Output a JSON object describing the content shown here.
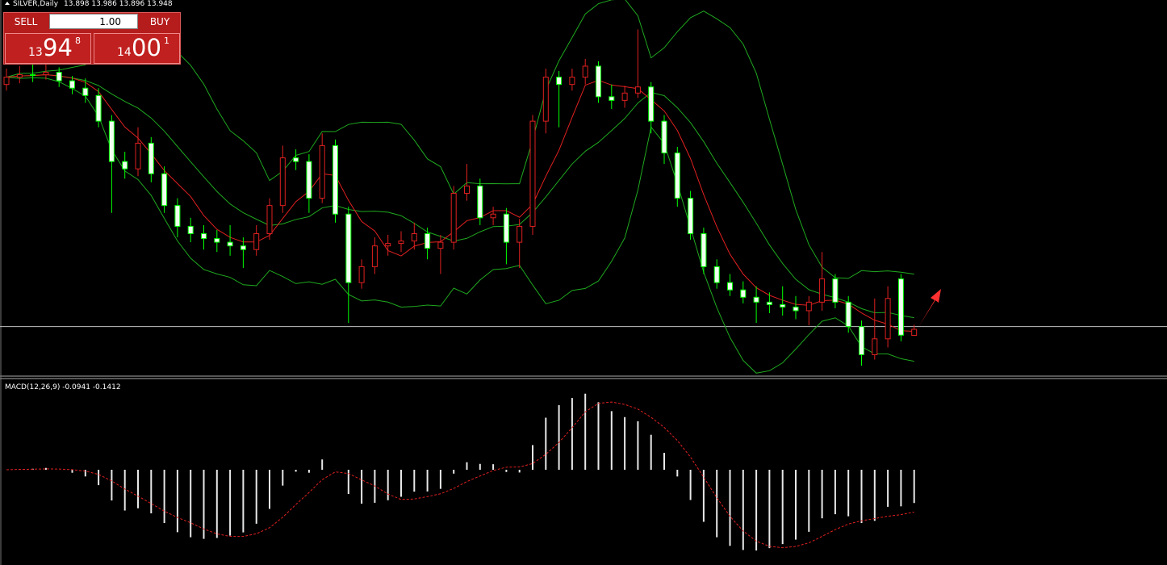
{
  "chart_data": {
    "type": "candlestick",
    "title": "SILVER,Daily",
    "ylim": [
      13.565,
      16.641
    ],
    "price_line": 13.97,
    "indicator_label": "MACD(12,26,9) -0.0941 -0.1412",
    "candles": [
      [
        15.95,
        16.08,
        15.9,
        16.01
      ],
      [
        16.01,
        16.1,
        15.96,
        16.03
      ],
      [
        16.03,
        16.12,
        15.97,
        16.03
      ],
      [
        16.03,
        16.2,
        15.99,
        16.05
      ],
      [
        16.05,
        16.09,
        15.93,
        15.98
      ],
      [
        15.98,
        16.02,
        15.87,
        15.92
      ],
      [
        15.92,
        16.0,
        15.8,
        15.86
      ],
      [
        15.86,
        15.92,
        15.6,
        15.65
      ],
      [
        15.65,
        15.7,
        14.9,
        15.32
      ],
      [
        15.32,
        15.4,
        15.18,
        15.26
      ],
      [
        15.26,
        15.6,
        15.2,
        15.47
      ],
      [
        15.47,
        15.52,
        15.15,
        15.22
      ],
      [
        15.22,
        15.28,
        14.9,
        14.96
      ],
      [
        14.96,
        15.02,
        14.7,
        14.79
      ],
      [
        14.79,
        14.86,
        14.66,
        14.73
      ],
      [
        14.73,
        14.8,
        14.6,
        14.69
      ],
      [
        14.69,
        14.76,
        14.58,
        14.66
      ],
      [
        14.66,
        14.8,
        14.55,
        14.63
      ],
      [
        14.63,
        14.7,
        14.45,
        14.6
      ],
      [
        14.6,
        14.8,
        14.55,
        14.73
      ],
      [
        14.73,
        15.02,
        14.68,
        14.96
      ],
      [
        14.96,
        15.45,
        14.9,
        15.35
      ],
      [
        15.35,
        15.42,
        15.25,
        15.32
      ],
      [
        15.32,
        15.38,
        14.9,
        15.02
      ],
      [
        15.02,
        15.55,
        14.98,
        15.45
      ],
      [
        15.45,
        15.5,
        14.82,
        14.89
      ],
      [
        14.89,
        14.95,
        14.0,
        14.33
      ],
      [
        14.33,
        14.52,
        14.28,
        14.46
      ],
      [
        14.46,
        14.7,
        14.4,
        14.63
      ],
      [
        14.63,
        14.72,
        14.55,
        14.65
      ],
      [
        14.65,
        14.75,
        14.58,
        14.67
      ],
      [
        14.67,
        14.82,
        14.6,
        14.73
      ],
      [
        14.73,
        14.78,
        14.52,
        14.61
      ],
      [
        14.61,
        14.72,
        14.4,
        14.66
      ],
      [
        14.66,
        15.12,
        14.6,
        15.06
      ],
      [
        15.06,
        15.3,
        15.0,
        15.12
      ],
      [
        15.12,
        15.18,
        14.8,
        14.86
      ],
      [
        14.86,
        14.95,
        14.8,
        14.89
      ],
      [
        14.89,
        14.94,
        14.48,
        14.66
      ],
      [
        14.66,
        14.85,
        14.45,
        14.79
      ],
      [
        14.79,
        15.7,
        14.72,
        15.65
      ],
      [
        15.65,
        16.08,
        15.55,
        16.01
      ],
      [
        16.01,
        16.06,
        15.6,
        15.95
      ],
      [
        15.95,
        16.08,
        15.9,
        16.01
      ],
      [
        16.01,
        16.16,
        15.95,
        16.1
      ],
      [
        16.1,
        16.14,
        15.8,
        15.85
      ],
      [
        15.85,
        15.95,
        15.75,
        15.82
      ],
      [
        15.82,
        15.94,
        15.76,
        15.88
      ],
      [
        15.88,
        16.4,
        15.84,
        15.93
      ],
      [
        15.93,
        15.97,
        15.55,
        15.65
      ],
      [
        15.65,
        15.7,
        15.3,
        15.39
      ],
      [
        15.39,
        15.44,
        14.95,
        15.02
      ],
      [
        15.02,
        15.08,
        14.68,
        14.73
      ],
      [
        14.73,
        14.78,
        14.4,
        14.46
      ],
      [
        14.46,
        14.52,
        14.28,
        14.33
      ],
      [
        14.33,
        14.4,
        14.22,
        14.27
      ],
      [
        14.27,
        14.34,
        14.16,
        14.21
      ],
      [
        14.21,
        14.3,
        14.0,
        14.17
      ],
      [
        14.17,
        14.25,
        14.08,
        14.15
      ],
      [
        14.15,
        14.3,
        14.06,
        14.13
      ],
      [
        14.13,
        14.22,
        14.03,
        14.1
      ],
      [
        14.1,
        14.22,
        13.98,
        14.17
      ],
      [
        14.17,
        14.58,
        14.1,
        14.36
      ],
      [
        14.36,
        14.4,
        14.12,
        14.17
      ],
      [
        14.17,
        14.22,
        13.92,
        13.97
      ],
      [
        13.97,
        14.02,
        13.65,
        13.74
      ],
      [
        13.74,
        14.2,
        13.7,
        13.87
      ],
      [
        13.87,
        14.3,
        13.8,
        14.2
      ],
      [
        14.36,
        14.4,
        13.85,
        13.9
      ],
      [
        13.898,
        13.986,
        13.896,
        13.948
      ]
    ]
  },
  "trade_panel": {
    "sell_label": "SELL",
    "buy_label": "BUY",
    "lot": "1.00",
    "sell_price": [
      "13",
      "94",
      "8"
    ],
    "buy_price": [
      "14",
      "00",
      "1"
    ]
  }
}
